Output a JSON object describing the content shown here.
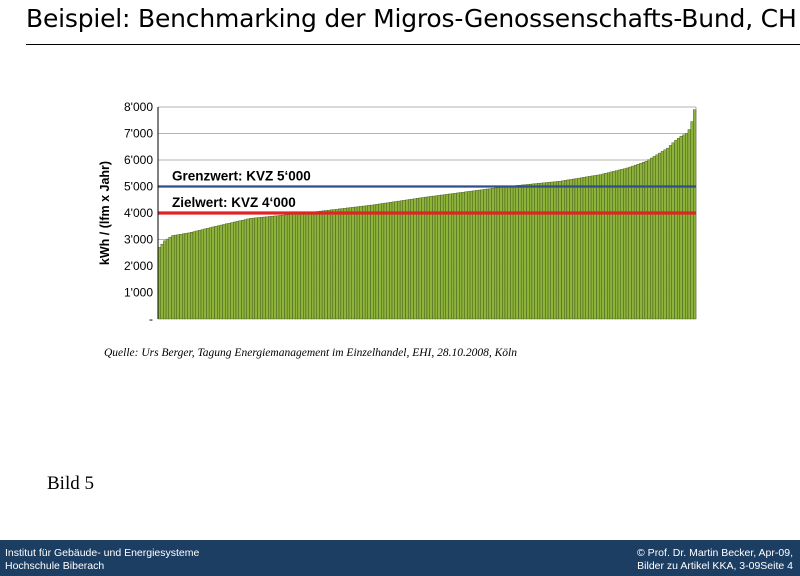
{
  "page": {
    "title": "Beispiel: Benchmarking der Migros-Genossenschafts-Bund, CH",
    "source": "Quelle:  Urs Berger, Tagung Energiemanagement im Einzelhandel, EHI, 28.10.2008, Köln",
    "figure_label": "Bild 5"
  },
  "footer": {
    "left_line1": "Institut für Gebäude- und Energiesysteme",
    "left_line2": "Hochschule Biberach",
    "right_line1": "© Prof. Dr. Martin Becker, Apr-09,",
    "right_line2": "Bilder zu Artikel KKA, 3-09Seite 4"
  },
  "chart_data": {
    "type": "bar",
    "title": "",
    "xlabel": "",
    "ylabel": "kWh / (lfm x Jahr)",
    "ylim": [
      0,
      8000
    ],
    "yticks": [
      0,
      1000,
      2000,
      3000,
      4000,
      5000,
      6000,
      7000,
      8000
    ],
    "ytick_labels": [
      "-",
      "1'000",
      "2'000",
      "3'000",
      "4'000",
      "5'000",
      "6'000",
      "7'000",
      "8'000"
    ],
    "grid": true,
    "bar_color": "#8db33a",
    "bar_edge_color": "#2e3d10",
    "x_index": {
      "start": 1,
      "end": 200
    },
    "values_profile": {
      "x": [
        1,
        3,
        6,
        12,
        22,
        35,
        55,
        80,
        100,
        115,
        130,
        150,
        165,
        175,
        182,
        186,
        190,
        193,
        195,
        197,
        198,
        199,
        200
      ],
      "y": [
        2700,
        2950,
        3150,
        3250,
        3500,
        3800,
        4000,
        4300,
        4600,
        4800,
        5000,
        5200,
        5450,
        5700,
        5950,
        6200,
        6450,
        6750,
        6900,
        7000,
        7150,
        7450,
        7900
      ]
    },
    "reference_lines": [
      {
        "label": "Grenzwert: KVZ 5‘000",
        "value": 5000,
        "color": "#2e4e8f"
      },
      {
        "label": "Zielwert: KVZ 4‘000",
        "value": 4000,
        "color": "#e02424"
      }
    ]
  }
}
